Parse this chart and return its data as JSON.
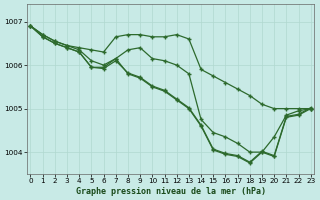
{
  "title": "Graphe pression niveau de la mer (hPa)",
  "bg_color": "#c8eae6",
  "line_color": "#2d6a2d",
  "grid_color": "#b0d8d0",
  "ylim": [
    1003.5,
    1007.4
  ],
  "xlim": [
    -0.3,
    23.3
  ],
  "yticks": [
    1004,
    1005,
    1006,
    1007
  ],
  "xticks": [
    0,
    1,
    2,
    3,
    4,
    5,
    6,
    7,
    8,
    9,
    10,
    11,
    12,
    13,
    14,
    15,
    16,
    17,
    18,
    19,
    20,
    21,
    22,
    23
  ],
  "series": [
    [
      1006.9,
      1006.7,
      1006.55,
      1006.45,
      1006.4,
      1006.35,
      1006.3,
      1006.65,
      1006.7,
      1006.7,
      1006.65,
      1006.65,
      1006.7,
      1006.6,
      1005.9,
      1005.75,
      1005.6,
      1005.45,
      1005.3,
      1005.1,
      1005.0,
      1005.0,
      1005.0,
      1005.0
    ],
    [
      1006.9,
      1006.7,
      1006.55,
      1006.45,
      1006.35,
      1006.1,
      1006.0,
      1006.15,
      1006.35,
      1006.4,
      1006.15,
      1006.1,
      1006.0,
      1005.8,
      1004.75,
      1004.45,
      1004.35,
      1004.2,
      1004.0,
      1004.0,
      1004.35,
      1004.85,
      1004.95,
      1005.0
    ],
    [
      1006.9,
      1006.65,
      1006.5,
      1006.4,
      1006.3,
      1005.95,
      1005.95,
      1006.15,
      1005.8,
      1005.7,
      1005.5,
      1005.4,
      1005.2,
      1005.0,
      1004.6,
      1004.05,
      1003.95,
      1003.9,
      1003.75,
      1004.0,
      1003.9,
      1004.8,
      1004.85,
      1005.0
    ],
    [
      1006.9,
      1006.65,
      1006.5,
      1006.4,
      1006.3,
      1005.95,
      1005.92,
      1006.1,
      1005.82,
      1005.72,
      1005.52,
      1005.42,
      1005.22,
      1005.02,
      1004.62,
      1004.07,
      1003.97,
      1003.92,
      1003.77,
      1004.02,
      1003.92,
      1004.82,
      1004.87,
      1005.02
    ]
  ]
}
